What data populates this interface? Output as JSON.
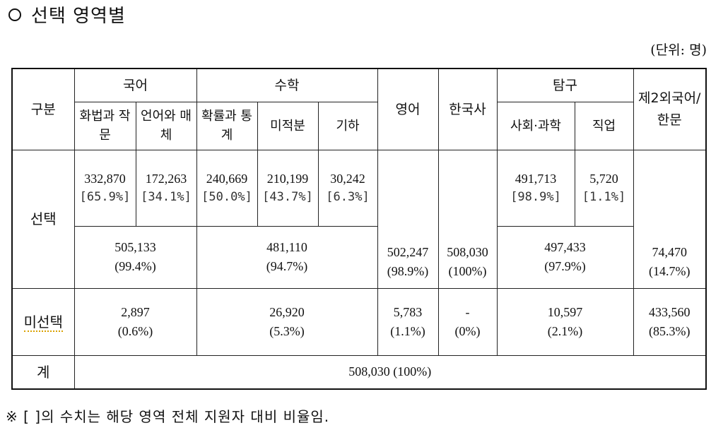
{
  "title": "선택 영역별",
  "unit": "(단위: 명)",
  "header": {
    "category": "구분",
    "korean": "국어",
    "math": "수학",
    "english": "영어",
    "history": "한국사",
    "inquiry": "탐구",
    "second_lang": "제2외국어/한문",
    "korean_sub": [
      "화법과 작문",
      "언어와 매체"
    ],
    "math_sub": [
      "확률과 통계",
      "미적분",
      "기하"
    ],
    "inquiry_sub": [
      "사회·과학",
      "직업"
    ]
  },
  "rows": {
    "selected_label": "선택",
    "selected_detail": [
      {
        "count": "332,870",
        "pct": "[65.9%]"
      },
      {
        "count": "172,263",
        "pct": "[34.1%]"
      },
      {
        "count": "240,669",
        "pct": "[50.0%]"
      },
      {
        "count": "210,199",
        "pct": "[43.7%]"
      },
      {
        "count": "30,242",
        "pct": "[6.3%]"
      },
      {
        "count": "491,713",
        "pct": "[98.9%]"
      },
      {
        "count": "5,720",
        "pct": "[1.1%]"
      }
    ],
    "selected_total": {
      "korean": {
        "count": "505,133",
        "pct": "(99.4%)"
      },
      "math": {
        "count": "481,110",
        "pct": "(94.7%)"
      },
      "english": {
        "count": "502,247",
        "pct": "(98.9%)"
      },
      "history": {
        "count": "508,030",
        "pct": "(100%)"
      },
      "inquiry": {
        "count": "497,433",
        "pct": "(97.9%)"
      },
      "second_lang": {
        "count": "74,470",
        "pct": "(14.7%)"
      }
    },
    "unselected_label": "미선택",
    "unselected": {
      "korean": {
        "count": "2,897",
        "pct": "(0.6%)"
      },
      "math": {
        "count": "26,920",
        "pct": "(5.3%)"
      },
      "english": {
        "count": "5,783",
        "pct": "(1.1%)"
      },
      "history": {
        "count": "-",
        "pct": "(0%)"
      },
      "inquiry": {
        "count": "10,597",
        "pct": "(2.1%)"
      },
      "second_lang": {
        "count": "433,560",
        "pct": "(85.3%)"
      }
    },
    "total_label": "계",
    "total_value": "508,030 (100%)"
  },
  "note": "※ [ ]의 수치는 해당 영역 전체 지원자 대비 비율임."
}
